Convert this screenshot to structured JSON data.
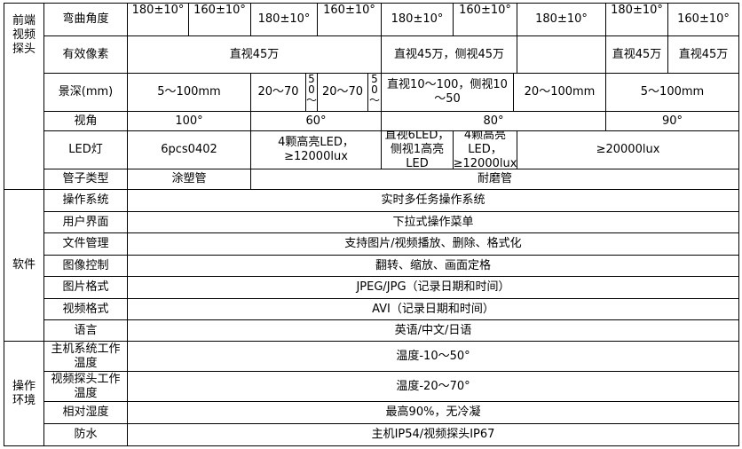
{
  "groups": {
    "probe": "前端视频探头",
    "software": "软件",
    "env": "操作环境"
  },
  "probe": {
    "bend": {
      "label": "弯曲角度",
      "values": [
        "180±10°",
        "160±10°",
        "180±10°",
        "160±10°",
        "180±10°",
        "160±10°",
        "180±10°",
        "180±10°",
        "160±10°"
      ]
    },
    "pixels": {
      "label": "有效像素",
      "values": [
        "直视45万",
        "直视45万，侧视45万",
        "",
        "直视45万",
        "直视45万"
      ]
    },
    "depth": {
      "label": "景深(mm)",
      "values": [
        "5～100mm",
        "20～70",
        "50～",
        "20～70",
        "50～",
        "直视10～100，侧视10～50",
        "20～100mm",
        "5～100mm"
      ]
    },
    "angle": {
      "label": "视角",
      "values": [
        "100°",
        "60°",
        "80°",
        "90°"
      ]
    },
    "led": {
      "label": "LED灯",
      "values": [
        "6pcs0402",
        "4颗高亮LED，≥12000lux",
        "直视6LED，侧视1高亮LED",
        "4颗高亮LED，≥12000lux",
        "≥20000lux"
      ]
    },
    "tube": {
      "label": "管子类型",
      "values": [
        "涂塑管",
        "耐磨管"
      ]
    }
  },
  "software": [
    {
      "label": "操作系统",
      "value": "实时多任务操作系统"
    },
    {
      "label": "用户界面",
      "value": "下拉式操作菜单"
    },
    {
      "label": "文件管理",
      "value": "支持图片/视频播放、删除、格式化"
    },
    {
      "label": "图像控制",
      "value": "翻转、缩放、画面定格"
    },
    {
      "label": "图片格式",
      "value": "JPEG/JPG（记录日期和时间）"
    },
    {
      "label": "视频格式",
      "value": "AVI（记录日期和时间）"
    },
    {
      "label": "语言",
      "value": "英语/中文/日语"
    }
  ],
  "env": [
    {
      "label": "主机系统工作温度",
      "value": "温度-10～50°"
    },
    {
      "label": "视频探头工作温度",
      "value": "温度-20～70°"
    },
    {
      "label": "相对湿度",
      "value": "最高90%，无冷凝"
    },
    {
      "label": "防水",
      "value": "主机IP54/视频探头IP67"
    }
  ]
}
